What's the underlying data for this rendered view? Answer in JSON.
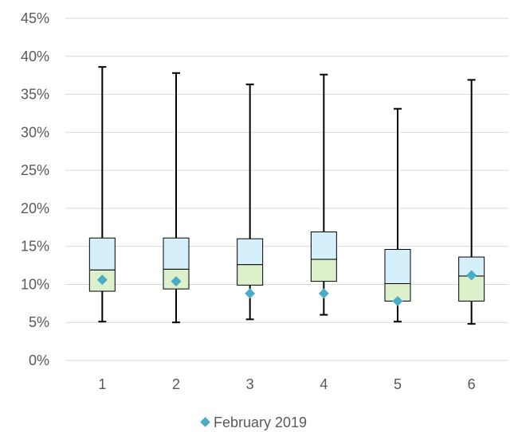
{
  "chart_data": {
    "type": "box",
    "categories": [
      "1",
      "2",
      "3",
      "4",
      "5",
      "6"
    ],
    "ylim": [
      0,
      45
    ],
    "yticks": [
      0,
      5,
      10,
      15,
      20,
      25,
      30,
      35,
      40,
      45
    ],
    "ytick_labels": [
      "0%",
      "5%",
      "10%",
      "15%",
      "20%",
      "25%",
      "30%",
      "35%",
      "40%",
      "45%"
    ],
    "grid": true,
    "legend_position": "bottom",
    "boxes": [
      {
        "min": 5.1,
        "q1": 9.1,
        "median": 11.9,
        "q3": 16.1,
        "max": 38.6
      },
      {
        "min": 5.0,
        "q1": 9.4,
        "median": 12.0,
        "q3": 16.1,
        "max": 37.8
      },
      {
        "min": 5.4,
        "q1": 9.9,
        "median": 12.6,
        "q3": 16.0,
        "max": 36.3
      },
      {
        "min": 6.0,
        "q1": 10.4,
        "median": 13.3,
        "q3": 16.9,
        "max": 37.6
      },
      {
        "min": 5.1,
        "q1": 7.8,
        "median": 10.1,
        "q3": 14.6,
        "max": 33.1
      },
      {
        "min": 4.8,
        "q1": 7.8,
        "median": 11.1,
        "q3": 13.6,
        "max": 36.9
      }
    ],
    "series": [
      {
        "name": "February 2019",
        "values": [
          10.6,
          10.4,
          8.8,
          8.8,
          7.8,
          11.2
        ],
        "color": "#4BACC6"
      }
    ],
    "colors": {
      "upper_box": "#D5EFFB",
      "lower_box": "#DCF0CC",
      "whisker": "#000000",
      "grid": "#D9D9D9",
      "marker": "#4BACC6"
    }
  }
}
